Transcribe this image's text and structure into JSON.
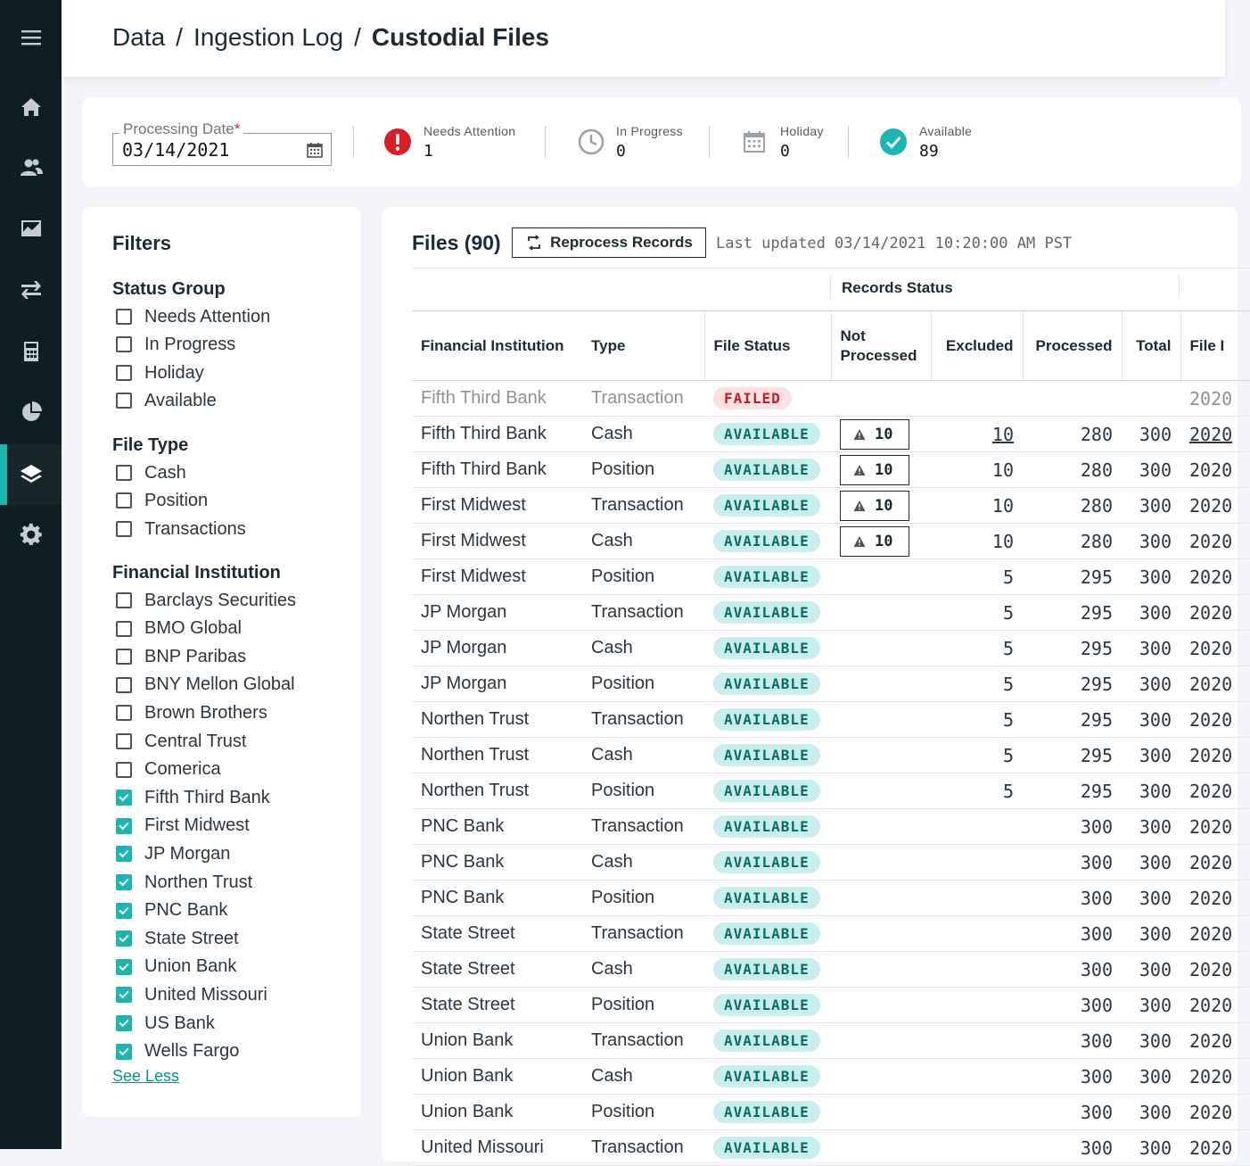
{
  "breadcrumb": [
    "Data",
    "Ingestion Log",
    "Custodial Files"
  ],
  "breadcrumb_separator": "/",
  "summary": {
    "processing_date_label": "Processing Date",
    "required_mark": "*",
    "processing_date_value": "03/14/2021",
    "stats": [
      {
        "label": "Needs Attention",
        "value": "1",
        "icon": "alert-icon"
      },
      {
        "label": "In Progress",
        "value": "0",
        "icon": "clock-icon"
      },
      {
        "label": "Holiday",
        "value": "0",
        "icon": "calendar-icon"
      },
      {
        "label": "Available",
        "value": "89",
        "icon": "check-circle-icon"
      }
    ]
  },
  "filters": {
    "title": "Filters",
    "status_group": {
      "title": "Status Group",
      "items": [
        "Needs Attention",
        "In Progress",
        "Holiday",
        "Available"
      ]
    },
    "file_type": {
      "title": "File Type",
      "items": [
        "Cash",
        "Position",
        "Transactions"
      ]
    },
    "financial_institution": {
      "title": "Financial Institution",
      "items": [
        {
          "label": "Barclays Securities",
          "checked": false
        },
        {
          "label": "BMO Global",
          "checked": false
        },
        {
          "label": "BNP Paribas",
          "checked": false
        },
        {
          "label": "BNY Mellon Global",
          "checked": false
        },
        {
          "label": "Brown Brothers",
          "checked": false
        },
        {
          "label": "Central Trust",
          "checked": false
        },
        {
          "label": "Comerica",
          "checked": false
        },
        {
          "label": "Fifth Third Bank",
          "checked": true
        },
        {
          "label": "First Midwest",
          "checked": true
        },
        {
          "label": "JP Morgan",
          "checked": true
        },
        {
          "label": "Northen Trust",
          "checked": true
        },
        {
          "label": "PNC Bank",
          "checked": true
        },
        {
          "label": "State Street",
          "checked": true
        },
        {
          "label": "Union Bank",
          "checked": true
        },
        {
          "label": "United Missouri",
          "checked": true
        },
        {
          "label": "US Bank",
          "checked": true
        },
        {
          "label": "Wells Fargo",
          "checked": true
        }
      ]
    },
    "see_less": "See Less"
  },
  "files": {
    "title": "Files (90)",
    "reprocess_label": "Reprocess Records",
    "last_updated": "Last updated 03/14/2021 10:20:00 AM PST",
    "records_status_label": "Records Status",
    "columns": [
      "Financial Institution",
      "Type",
      "File Status",
      "Not Processed",
      "Excluded",
      "Processed",
      "Total",
      "File I"
    ],
    "rows": [
      {
        "fi": "Fifth Third Bank",
        "type": "Transaction",
        "status": "FAILED",
        "not_processed": "",
        "excluded": "",
        "processed": "",
        "total": "",
        "file": "2020",
        "dim": true
      },
      {
        "fi": "Fifth Third Bank",
        "type": "Cash",
        "status": "AVAILABLE",
        "not_processed": "10",
        "excluded": "10",
        "excluded_link": true,
        "processed": "280",
        "total": "300",
        "file": "2020",
        "file_link": true
      },
      {
        "fi": "Fifth Third Bank",
        "type": "Position",
        "status": "AVAILABLE",
        "not_processed": "10",
        "excluded": "10",
        "processed": "280",
        "total": "300",
        "file": "2020"
      },
      {
        "fi": "First Midwest",
        "type": "Transaction",
        "status": "AVAILABLE",
        "not_processed": "10",
        "excluded": "10",
        "processed": "280",
        "total": "300",
        "file": "2020"
      },
      {
        "fi": "First Midwest",
        "type": "Cash",
        "status": "AVAILABLE",
        "not_processed": "10",
        "excluded": "10",
        "processed": "280",
        "total": "300",
        "file": "2020"
      },
      {
        "fi": "First Midwest",
        "type": "Position",
        "status": "AVAILABLE",
        "not_processed": "",
        "excluded": "5",
        "processed": "295",
        "total": "300",
        "file": "2020"
      },
      {
        "fi": "JP Morgan",
        "type": "Transaction",
        "status": "AVAILABLE",
        "not_processed": "",
        "excluded": "5",
        "processed": "295",
        "total": "300",
        "file": "2020"
      },
      {
        "fi": "JP Morgan",
        "type": "Cash",
        "status": "AVAILABLE",
        "not_processed": "",
        "excluded": "5",
        "processed": "295",
        "total": "300",
        "file": "2020"
      },
      {
        "fi": "JP Morgan",
        "type": "Position",
        "status": "AVAILABLE",
        "not_processed": "",
        "excluded": "5",
        "processed": "295",
        "total": "300",
        "file": "2020"
      },
      {
        "fi": "Northen Trust",
        "type": "Transaction",
        "status": "AVAILABLE",
        "not_processed": "",
        "excluded": "5",
        "processed": "295",
        "total": "300",
        "file": "2020"
      },
      {
        "fi": "Northen Trust",
        "type": "Cash",
        "status": "AVAILABLE",
        "not_processed": "",
        "excluded": "5",
        "processed": "295",
        "total": "300",
        "file": "2020"
      },
      {
        "fi": "Northen Trust",
        "type": "Position",
        "status": "AVAILABLE",
        "not_processed": "",
        "excluded": "5",
        "processed": "295",
        "total": "300",
        "file": "2020"
      },
      {
        "fi": "PNC Bank",
        "type": "Transaction",
        "status": "AVAILABLE",
        "not_processed": "",
        "excluded": "",
        "processed": "300",
        "total": "300",
        "file": "2020"
      },
      {
        "fi": "PNC Bank",
        "type": "Cash",
        "status": "AVAILABLE",
        "not_processed": "",
        "excluded": "",
        "processed": "300",
        "total": "300",
        "file": "2020"
      },
      {
        "fi": "PNC Bank",
        "type": "Position",
        "status": "AVAILABLE",
        "not_processed": "",
        "excluded": "",
        "processed": "300",
        "total": "300",
        "file": "2020"
      },
      {
        "fi": "State Street",
        "type": "Transaction",
        "status": "AVAILABLE",
        "not_processed": "",
        "excluded": "",
        "processed": "300",
        "total": "300",
        "file": "2020"
      },
      {
        "fi": "State Street",
        "type": "Cash",
        "status": "AVAILABLE",
        "not_processed": "",
        "excluded": "",
        "processed": "300",
        "total": "300",
        "file": "2020"
      },
      {
        "fi": "State Street",
        "type": "Position",
        "status": "AVAILABLE",
        "not_processed": "",
        "excluded": "",
        "processed": "300",
        "total": "300",
        "file": "2020"
      },
      {
        "fi": "Union Bank",
        "type": "Transaction",
        "status": "AVAILABLE",
        "not_processed": "",
        "excluded": "",
        "processed": "300",
        "total": "300",
        "file": "2020"
      },
      {
        "fi": "Union Bank",
        "type": "Cash",
        "status": "AVAILABLE",
        "not_processed": "",
        "excluded": "",
        "processed": "300",
        "total": "300",
        "file": "2020"
      },
      {
        "fi": "Union Bank",
        "type": "Position",
        "status": "AVAILABLE",
        "not_processed": "",
        "excluded": "",
        "processed": "300",
        "total": "300",
        "file": "2020"
      },
      {
        "fi": "United Missouri",
        "type": "Transaction",
        "status": "AVAILABLE",
        "not_processed": "",
        "excluded": "",
        "processed": "300",
        "total": "300",
        "file": "2020"
      }
    ]
  },
  "nav": [
    "menu-icon",
    "home-icon",
    "users-icon",
    "chart-icon",
    "transfer-icon",
    "calculator-icon",
    "pie-chart-icon",
    "layers-icon",
    "settings-icon"
  ],
  "colors": {
    "accent": "#1cb5b0",
    "sidebar": "#0d1f24",
    "danger": "#da1e28"
  }
}
